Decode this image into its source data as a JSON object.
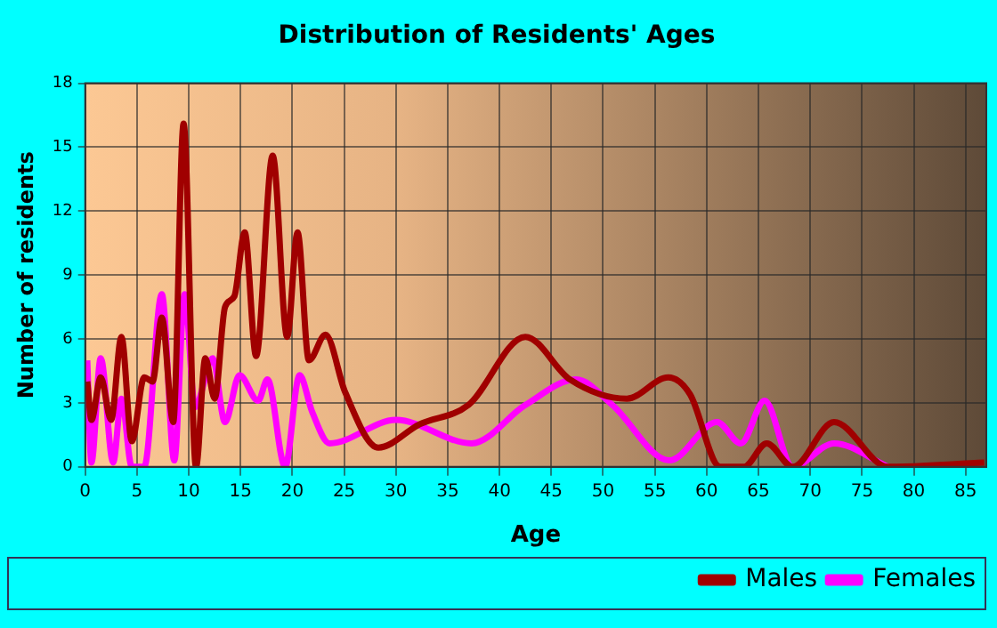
{
  "chart_data": {
    "type": "line",
    "title": "Distribution of Residents' Ages",
    "xlabel": "Age",
    "ylabel": "Number of residents",
    "xlim": [
      0,
      87
    ],
    "xticks": [
      0,
      5,
      10,
      15,
      20,
      25,
      30,
      35,
      40,
      45,
      50,
      55,
      60,
      65,
      70,
      75,
      80,
      85
    ],
    "ylim": [
      0,
      18
    ],
    "yticks": [
      0,
      3,
      6,
      9,
      12,
      15,
      18
    ],
    "grid": true,
    "legend": "bottom right",
    "marker": "none",
    "line_style": "solid",
    "series": [
      {
        "name": "Males",
        "color": "#a00000",
        "x": [
          0.2,
          0.6,
          1.5,
          2.5,
          3.5,
          4.5,
          5.7,
          6.5,
          7.4,
          8.5,
          9.5,
          10.7,
          11.6,
          12.5,
          13.5,
          14.4,
          15.4,
          16.5,
          18.1,
          19.5,
          20.5,
          21.6,
          23.2,
          25.1,
          28.3,
          32.3,
          37,
          42.5,
          46.8,
          52.3,
          56.3,
          58.4,
          61.3,
          63.6,
          65.8,
          68.3,
          72.3,
          77.5,
          86.8
        ],
        "values": [
          4,
          2.2,
          4.2,
          2.2,
          6.1,
          1.2,
          4.2,
          4,
          7,
          2.1,
          16.1,
          0,
          5.1,
          3.2,
          7.5,
          8,
          11,
          5.2,
          14.6,
          6.1,
          11,
          5,
          6.2,
          3.5,
          0.9,
          2,
          2.9,
          6.1,
          4.1,
          3.2,
          4.2,
          3.4,
          0,
          0,
          1.1,
          0,
          2.1,
          0,
          0.2
        ]
      },
      {
        "name": "Females",
        "color": "#ff00ff",
        "x": [
          0.2,
          0.6,
          1.5,
          2.7,
          3.5,
          4.5,
          5.7,
          7.4,
          8.6,
          9.6,
          10.6,
          12.3,
          13.5,
          14.9,
          16.7,
          17.6,
          19.3,
          20.7,
          21.9,
          23.6,
          30,
          37.3,
          42.5,
          47.4,
          50.9,
          56.4,
          61,
          63.3,
          65.6,
          68.3,
          72.3,
          77.5
        ],
        "values": [
          5,
          0.2,
          5.1,
          0.2,
          3.2,
          0,
          0,
          8.1,
          0.3,
          8.1,
          2.8,
          5.1,
          2.1,
          4.3,
          3.1,
          4.1,
          0,
          4.3,
          2.6,
          1.1,
          2.2,
          1.1,
          2.9,
          4.1,
          2.9,
          0.3,
          2.1,
          1.1,
          3.1,
          0,
          1.1,
          0
        ]
      }
    ]
  }
}
